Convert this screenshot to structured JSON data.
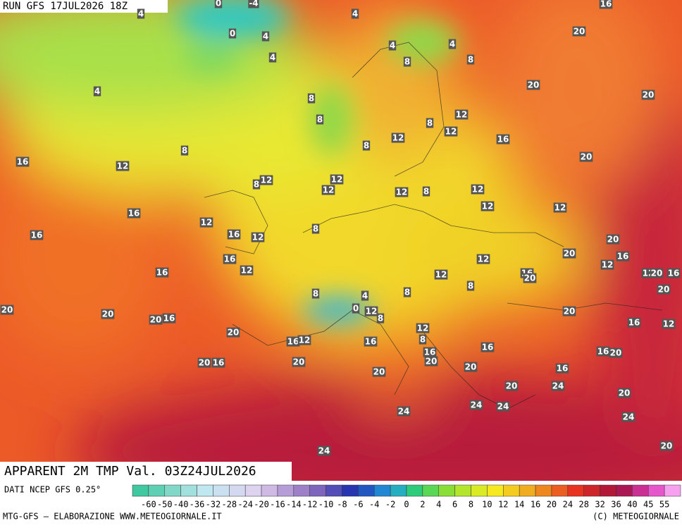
{
  "header": {
    "run": "RUN GFS 17JUL2026 18Z"
  },
  "title": "APPARENT 2M TMP Val. 03Z24JUL2026",
  "source": "DATI NCEP GFS 0.25°",
  "credit_left": "MTG-GFS — ELABORAZIONE WWW.METEOGIORNALE.IT",
  "credit_right": "(C) METEOGIORNALE",
  "colorbar_ticks": [
    -60,
    -50,
    -40,
    -36,
    -32,
    -28,
    -24,
    -20,
    -16,
    -14,
    -12,
    -10,
    -8,
    -6,
    -4,
    -2,
    0,
    2,
    4,
    6,
    8,
    10,
    12,
    14,
    16,
    20,
    24,
    28,
    32,
    36,
    40,
    45,
    55
  ],
  "map_labels": [
    0,
    -4,
    4,
    4,
    0,
    4,
    4,
    4,
    4,
    8,
    8,
    4,
    8,
    8,
    8,
    12,
    12,
    12,
    8,
    16,
    8,
    12,
    16,
    12,
    8,
    12,
    12,
    12,
    8,
    12,
    12,
    12,
    16,
    12,
    16,
    16,
    12,
    8,
    20,
    20,
    16,
    16,
    12,
    12,
    12,
    16,
    12,
    16,
    20,
    12,
    20,
    16,
    8,
    8,
    4,
    8,
    20,
    20,
    0,
    12,
    20,
    8,
    20,
    20,
    16,
    12,
    16,
    12,
    20,
    8,
    16,
    12,
    16,
    16,
    16,
    16,
    20,
    20,
    16,
    20,
    20,
    20,
    20,
    16,
    20,
    24,
    20,
    24,
    24,
    24,
    24,
    24,
    20,
    16,
    20,
    20,
    20,
    20
  ]
}
